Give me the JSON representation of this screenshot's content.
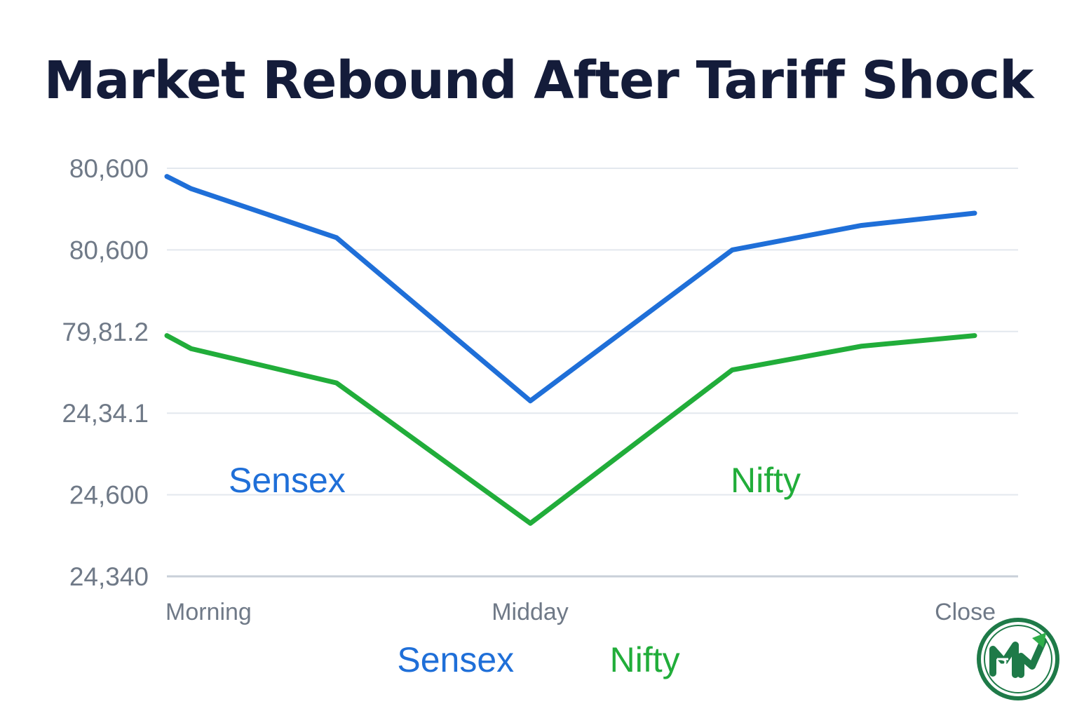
{
  "chart_data": {
    "type": "line",
    "title": "Market Rebound After Tariff Shock",
    "xlabel": "",
    "ylabel": "",
    "y_tick_labels": [
      "80,600",
      "80,600",
      "79,81.2",
      "24,34.1",
      "24,600",
      "24,340"
    ],
    "x_category_labels": [
      "Morning",
      "Midday",
      "Close"
    ],
    "x": [
      0,
      0.03,
      0.21,
      0.45,
      0.7,
      0.86,
      1.0
    ],
    "y_range": [
      0,
      5
    ],
    "grid": true,
    "legend_position": "bottom-center",
    "series": [
      {
        "name": "Sensex",
        "color": "#1f6fd8",
        "values": [
          4.9,
          4.75,
          4.15,
          2.15,
          4.0,
          4.3,
          4.45
        ]
      },
      {
        "name": "Nifty",
        "color": "#21ad3a",
        "values": [
          2.95,
          2.79,
          2.37,
          0.65,
          2.53,
          2.82,
          2.95
        ]
      }
    ],
    "series_labels": [
      {
        "text": "Sensex",
        "color": "#1f6fd8"
      },
      {
        "text": "Nifty",
        "color": "#21ad3a"
      }
    ]
  },
  "logo": {
    "name": "rupee-growth-logo-icon",
    "ring_color": "#1e7a48",
    "arrow_color": "#2fae4a"
  }
}
